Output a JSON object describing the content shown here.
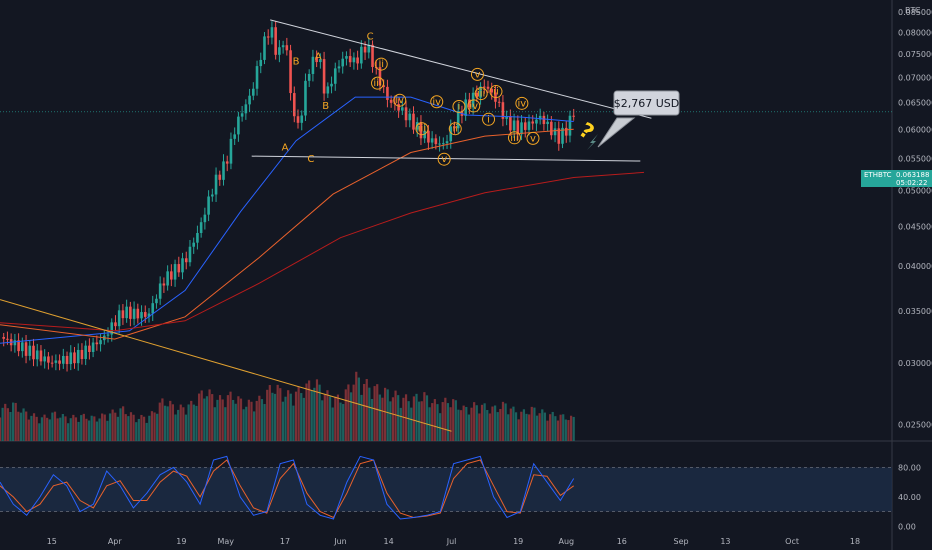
{
  "header": {
    "currency": "BTC"
  },
  "price_badge": {
    "symbol": "ETHBTC",
    "price": "0.063188",
    "countdown": "05:02:22"
  },
  "callout": {
    "text": "$2,767 USD",
    "symbol": "?"
  },
  "colors": {
    "background": "#131722",
    "up": "#26a69a",
    "down": "#ef5350",
    "wave_labels": "#f5a623",
    "ma_fast": "#2962ff",
    "ma_mid": "#e8612c",
    "ma_slow": "#b71c1c",
    "stoch_k": "#2962ff",
    "stoch_d": "#e8612c"
  },
  "wave_labels": [
    {
      "text": "A",
      "x": "2021-05-17",
      "y": 0.0568,
      "circle": false
    },
    {
      "text": "B",
      "x": "2021-05-20",
      "y": 0.0734,
      "circle": false
    },
    {
      "text": "A",
      "x": "2021-05-26",
      "y": 0.0745,
      "circle": false
    },
    {
      "text": "B",
      "x": "2021-05-28",
      "y": 0.0643,
      "circle": false
    },
    {
      "text": "C",
      "x": "2021-05-24",
      "y": 0.0549,
      "circle": false
    },
    {
      "text": "C",
      "x": "2021-06-09",
      "y": 0.079,
      "circle": false
    },
    {
      "text": "ii",
      "x": "2021-06-12",
      "y": 0.0728,
      "circle": true
    },
    {
      "text": "iii",
      "x": "2021-06-11",
      "y": 0.0688,
      "circle": true
    },
    {
      "text": "iv",
      "x": "2021-06-17",
      "y": 0.0654,
      "circle": true
    },
    {
      "text": "iii",
      "x": "2021-06-23",
      "y": 0.0601,
      "circle": true
    },
    {
      "text": "iv",
      "x": "2021-06-27",
      "y": 0.0651,
      "circle": true
    },
    {
      "text": "v",
      "x": "2021-06-29",
      "y": 0.0549,
      "circle": true
    },
    {
      "text": "i",
      "x": "2021-07-03",
      "y": 0.0642,
      "circle": true
    },
    {
      "text": "ii",
      "x": "2021-07-02",
      "y": 0.0601,
      "circle": true
    },
    {
      "text": "iv",
      "x": "2021-07-07",
      "y": 0.0643,
      "circle": true
    },
    {
      "text": "iii",
      "x": "2021-07-09",
      "y": 0.0667,
      "circle": true
    },
    {
      "text": "v",
      "x": "2021-07-08",
      "y": 0.0706,
      "circle": true
    },
    {
      "text": "ii",
      "x": "2021-07-13",
      "y": 0.0671,
      "circle": true
    },
    {
      "text": "i",
      "x": "2021-07-11",
      "y": 0.0618,
      "circle": true
    },
    {
      "text": "iii",
      "x": "2021-07-18",
      "y": 0.0585,
      "circle": true
    },
    {
      "text": "iv",
      "x": "2021-07-20",
      "y": 0.0648,
      "circle": true
    },
    {
      "text": "v",
      "x": "2021-07-23",
      "y": 0.0584,
      "circle": true
    }
  ],
  "chart_data": {
    "type": "candlestick",
    "pair": "ETHBTC",
    "interval": "1D",
    "x_ticks": [
      {
        "label": "15",
        "date": "2021-03-15"
      },
      {
        "label": "Apr",
        "date": "2021-04-01"
      },
      {
        "label": "19",
        "date": "2021-04-19"
      },
      {
        "label": "May",
        "date": "2021-05-01"
      },
      {
        "label": "17",
        "date": "2021-05-17"
      },
      {
        "label": "Jun",
        "date": "2021-06-01"
      },
      {
        "label": "14",
        "date": "2021-06-14"
      },
      {
        "label": "Jul",
        "date": "2021-07-01"
      },
      {
        "label": "19",
        "date": "2021-07-19"
      },
      {
        "label": "Aug",
        "date": "2021-08-01"
      },
      {
        "label": "16",
        "date": "2021-08-16"
      },
      {
        "label": "Sep",
        "date": "2021-09-01"
      },
      {
        "label": "13",
        "date": "2021-09-13"
      },
      {
        "label": "Oct",
        "date": "2021-10-01"
      },
      {
        "label": "18",
        "date": "2021-10-18"
      }
    ],
    "xlim": [
      "2021-03-01",
      "2021-10-28"
    ],
    "y_ticks": [
      "0.085000",
      "0.080000",
      "0.075000",
      "0.070000",
      "0.065000",
      "0.060000",
      "0.055000",
      "0.050000",
      "0.045000",
      "0.040000",
      "0.035000",
      "0.030000",
      "0.025000"
    ],
    "y_scale": "log",
    "ylim": [
      0.0238,
      0.087
    ],
    "candle_key_closes": [
      [
        "2021-03-01",
        0.0324
      ],
      [
        "2021-03-08",
        0.0312
      ],
      [
        "2021-03-15",
        0.03
      ],
      [
        "2021-03-22",
        0.0306
      ],
      [
        "2021-03-29",
        0.0323
      ],
      [
        "2021-04-03",
        0.0349
      ],
      [
        "2021-04-10",
        0.0345
      ],
      [
        "2021-04-14",
        0.0382
      ],
      [
        "2021-04-20",
        0.0406
      ],
      [
        "2021-04-24",
        0.0448
      ],
      [
        "2021-04-28",
        0.0512
      ],
      [
        "2021-05-01",
        0.0542
      ],
      [
        "2021-05-04",
        0.0612
      ],
      [
        "2021-05-08",
        0.0668
      ],
      [
        "2021-05-11",
        0.0766
      ],
      [
        "2021-05-13",
        0.0815
      ],
      [
        "2021-05-15",
        0.0742
      ],
      [
        "2021-05-17",
        0.0792
      ],
      [
        "2021-05-19",
        0.0631
      ],
      [
        "2021-05-21",
        0.0602
      ],
      [
        "2021-05-23",
        0.071
      ],
      [
        "2021-05-26",
        0.0752
      ],
      [
        "2021-05-28",
        0.0658
      ],
      [
        "2021-05-30",
        0.0705
      ],
      [
        "2021-06-02",
        0.0745
      ],
      [
        "2021-06-05",
        0.0732
      ],
      [
        "2021-06-08",
        0.0772
      ],
      [
        "2021-06-11",
        0.0703
      ],
      [
        "2021-06-14",
        0.0652
      ],
      [
        "2021-06-17",
        0.0638
      ],
      [
        "2021-06-20",
        0.0616
      ],
      [
        "2021-06-23",
        0.0592
      ],
      [
        "2021-06-26",
        0.0578
      ],
      [
        "2021-06-29",
        0.0573
      ],
      [
        "2021-07-01",
        0.0601
      ],
      [
        "2021-07-04",
        0.0638
      ],
      [
        "2021-07-07",
        0.066
      ],
      [
        "2021-07-10",
        0.0685
      ],
      [
        "2021-07-13",
        0.0655
      ],
      [
        "2021-07-16",
        0.0612
      ],
      [
        "2021-07-19",
        0.0601
      ],
      [
        "2021-07-22",
        0.0609
      ],
      [
        "2021-07-25",
        0.0622
      ],
      [
        "2021-07-28",
        0.0598
      ],
      [
        "2021-07-30",
        0.0585
      ],
      [
        "2021-08-01",
        0.0599
      ],
      [
        "2021-08-03",
        0.0632
      ]
    ],
    "last_price": 0.063188,
    "trendlines": [
      {
        "name": "upper",
        "from": [
          "2021-05-13",
          0.083
        ],
        "to": [
          "2021-08-24",
          0.062
        ]
      },
      {
        "name": "lower",
        "from": [
          "2021-05-08",
          0.0554
        ],
        "to": [
          "2021-08-21",
          0.0546
        ]
      },
      {
        "name": "volume-trend",
        "from": [
          "2021-03-01",
          0.0362
        ],
        "to": [
          "2021-07-01",
          0.0245
        ]
      }
    ],
    "moving_averages": [
      {
        "points": [
          [
            "2021-03-01",
            0.0318
          ],
          [
            "2021-04-05",
            0.033
          ],
          [
            "2021-04-20",
            0.0372
          ],
          [
            "2021-05-05",
            0.047
          ],
          [
            "2021-05-20",
            0.058
          ],
          [
            "2021-06-05",
            0.066
          ],
          [
            "2021-06-20",
            0.066
          ],
          [
            "2021-07-05",
            0.0626
          ],
          [
            "2021-07-20",
            0.0622
          ],
          [
            "2021-08-03",
            0.0614
          ]
        ]
      },
      {
        "points": [
          [
            "2021-03-01",
            0.0336
          ],
          [
            "2021-04-01",
            0.0322
          ],
          [
            "2021-04-20",
            0.0344
          ],
          [
            "2021-05-10",
            0.041
          ],
          [
            "2021-05-30",
            0.0495
          ],
          [
            "2021-06-20",
            0.056
          ],
          [
            "2021-07-10",
            0.0588
          ],
          [
            "2021-08-03",
            0.06
          ]
        ]
      },
      {
        "points": [
          [
            "2021-03-01",
            0.0338
          ],
          [
            "2021-04-01",
            0.033
          ],
          [
            "2021-04-20",
            0.034
          ],
          [
            "2021-05-10",
            0.038
          ],
          [
            "2021-06-01",
            0.0435
          ],
          [
            "2021-06-20",
            0.0468
          ],
          [
            "2021-07-10",
            0.0497
          ],
          [
            "2021-08-03",
            0.052
          ],
          [
            "2021-08-22",
            0.0528
          ]
        ]
      }
    ],
    "volume_relative": [
      0.7,
      0.8,
      0.6,
      0.5,
      0.6,
      0.5,
      0.55,
      0.5,
      0.6,
      0.7,
      0.5,
      0.55,
      0.9,
      0.7,
      0.8,
      1.1,
      0.9,
      1.0,
      0.8,
      0.9,
      1.2,
      1.0,
      1.1,
      1.3,
      1.0,
      0.9,
      1.4,
      1.2,
      1.1,
      1.0,
      0.9,
      1.0,
      0.8,
      0.9,
      0.7,
      0.8,
      0.7,
      0.8,
      0.6,
      0.7,
      0.6,
      0.55,
      0.5
    ],
    "oscillator": {
      "y_ticks": [
        "80.00",
        "40.00",
        "0.00"
      ],
      "ylim": [
        -5,
        105
      ],
      "bands": [
        20,
        80
      ],
      "k": [
        60,
        30,
        15,
        40,
        70,
        55,
        20,
        30,
        75,
        55,
        25,
        45,
        70,
        80,
        60,
        30,
        90,
        95,
        40,
        15,
        20,
        85,
        90,
        30,
        15,
        10,
        60,
        95,
        90,
        30,
        10,
        12,
        15,
        20,
        85,
        90,
        95,
        40,
        12,
        20,
        85,
        60,
        35,
        65
      ],
      "d": [
        55,
        40,
        20,
        30,
        55,
        60,
        35,
        25,
        55,
        62,
        35,
        35,
        60,
        75,
        68,
        40,
        75,
        90,
        55,
        25,
        18,
        65,
        85,
        45,
        20,
        12,
        45,
        85,
        90,
        45,
        18,
        12,
        14,
        18,
        65,
        85,
        90,
        55,
        20,
        18,
        70,
        68,
        42,
        55
      ]
    }
  }
}
